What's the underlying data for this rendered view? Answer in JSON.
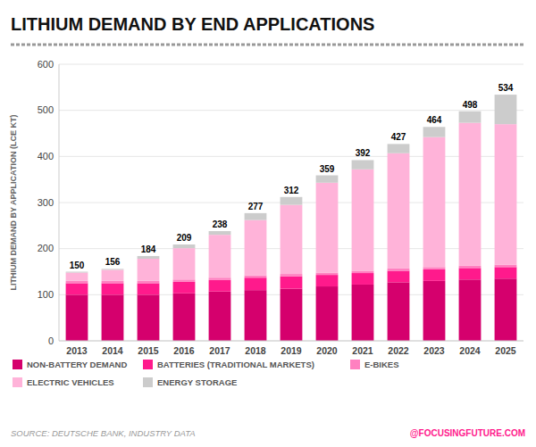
{
  "chart_data": {
    "type": "bar",
    "stacked": true,
    "title": "LITHIUM DEMAND BY END APPLICATIONS",
    "ylabel": "LITHIUM DEMAND BY APPLICATION (LCE KT)",
    "categories": [
      "2013",
      "2014",
      "2015",
      "2016",
      "2017",
      "2018",
      "2019",
      "2020",
      "2021",
      "2022",
      "2023",
      "2024",
      "2025"
    ],
    "series": [
      {
        "name": "NON-BATTERY DEMAND",
        "color": "#D5006D",
        "values": [
          100,
          100,
          100,
          103,
          107,
          110,
          113,
          118,
          122,
          127,
          130,
          133,
          135
        ]
      },
      {
        "name": "BATTERIES (TRADITIONAL MARKETS)",
        "color": "#FF1A8C",
        "values": [
          25,
          25,
          25,
          25,
          25,
          27,
          27,
          25,
          25,
          25,
          25,
          25,
          25
        ]
      },
      {
        "name": "E-BIKES",
        "color": "#FF80C0",
        "values": [
          5,
          5,
          5,
          5,
          5,
          5,
          5,
          5,
          5,
          5,
          5,
          5,
          5
        ]
      },
      {
        "name": "ELECTRIC VEHICLES",
        "color": "#FFB3D9",
        "values": [
          18,
          24,
          48,
          68,
          93,
          120,
          150,
          195,
          220,
          250,
          282,
          310,
          305
        ]
      },
      {
        "name": "ENERGY STORAGE",
        "color": "#CCCCCC",
        "values": [
          2,
          2,
          6,
          8,
          8,
          15,
          17,
          16,
          20,
          20,
          22,
          25,
          64
        ]
      }
    ],
    "totals": [
      150,
      156,
      184,
      209,
      238,
      277,
      312,
      359,
      392,
      427,
      464,
      498,
      534
    ],
    "ylim": [
      0,
      600
    ],
    "yticks": [
      0,
      100,
      200,
      300,
      400,
      500,
      600
    ],
    "grid": true,
    "legend": "bottom",
    "source": "SOURCE: DEUTSCHE BANK, INDUSTRY DATA",
    "credit": "@FOCUSINGFUTURE.COM"
  }
}
